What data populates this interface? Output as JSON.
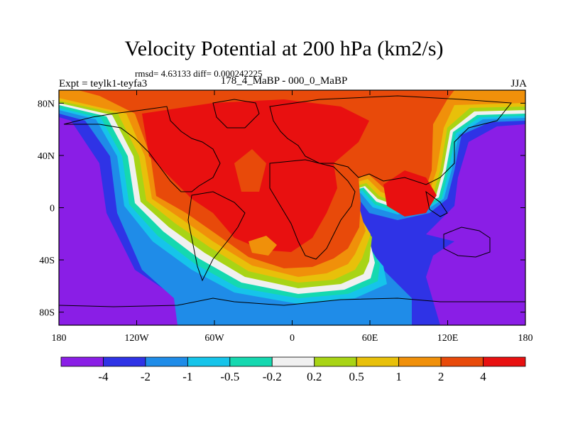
{
  "chart_data": {
    "type": "contour-map",
    "title": "Velocity Potential at 200 hPa (km2/s)",
    "stats": "rmsd= 4.63133 diff= 0.000242225",
    "left_label": "Expt = teylk1-teyfa3",
    "center_label": "178_4_MaBP - 000_0_MaBP",
    "season": "JJA",
    "x_ticks": [
      {
        "lon": -180,
        "label": "180"
      },
      {
        "lon": -120,
        "label": "120W"
      },
      {
        "lon": -60,
        "label": "60W"
      },
      {
        "lon": 0,
        "label": "0"
      },
      {
        "lon": 60,
        "label": "60E"
      },
      {
        "lon": 120,
        "label": "120E"
      },
      {
        "lon": 180,
        "label": "180"
      }
    ],
    "y_ticks": [
      {
        "lat": 80,
        "label": "80N"
      },
      {
        "lat": 40,
        "label": "40N"
      },
      {
        "lat": 0,
        "label": "0"
      },
      {
        "lat": -40,
        "label": "40S"
      },
      {
        "lat": -80,
        "label": "80S"
      }
    ],
    "xlim": [
      -180,
      180
    ],
    "ylim": [
      -90,
      90
    ],
    "colorbar": {
      "boundaries": [
        "-4",
        "-2",
        "-1",
        "-0.5",
        "-0.2",
        "0.2",
        "0.5",
        "1",
        "2",
        "4"
      ],
      "colors": [
        "#8a1ee6",
        "#2f33e6",
        "#1f8ce8",
        "#16c4ea",
        "#15d8b0",
        "#f0f0f0",
        "#a8d415",
        "#e8c00a",
        "#f0900a",
        "#e84a0a",
        "#e81010"
      ]
    },
    "regions": [
      {
        "name": "positive-core-americas-africa",
        "level": 4,
        "center": [
          -40,
          30
        ]
      },
      {
        "name": "positive-core-india",
        "level": 4,
        "center": [
          90,
          5
        ]
      },
      {
        "name": "negative-core-pacific-east",
        "level": -4,
        "center": [
          -160,
          -10
        ]
      },
      {
        "name": "negative-core-pacific-west",
        "level": -4,
        "center": [
          160,
          0
        ]
      }
    ]
  }
}
